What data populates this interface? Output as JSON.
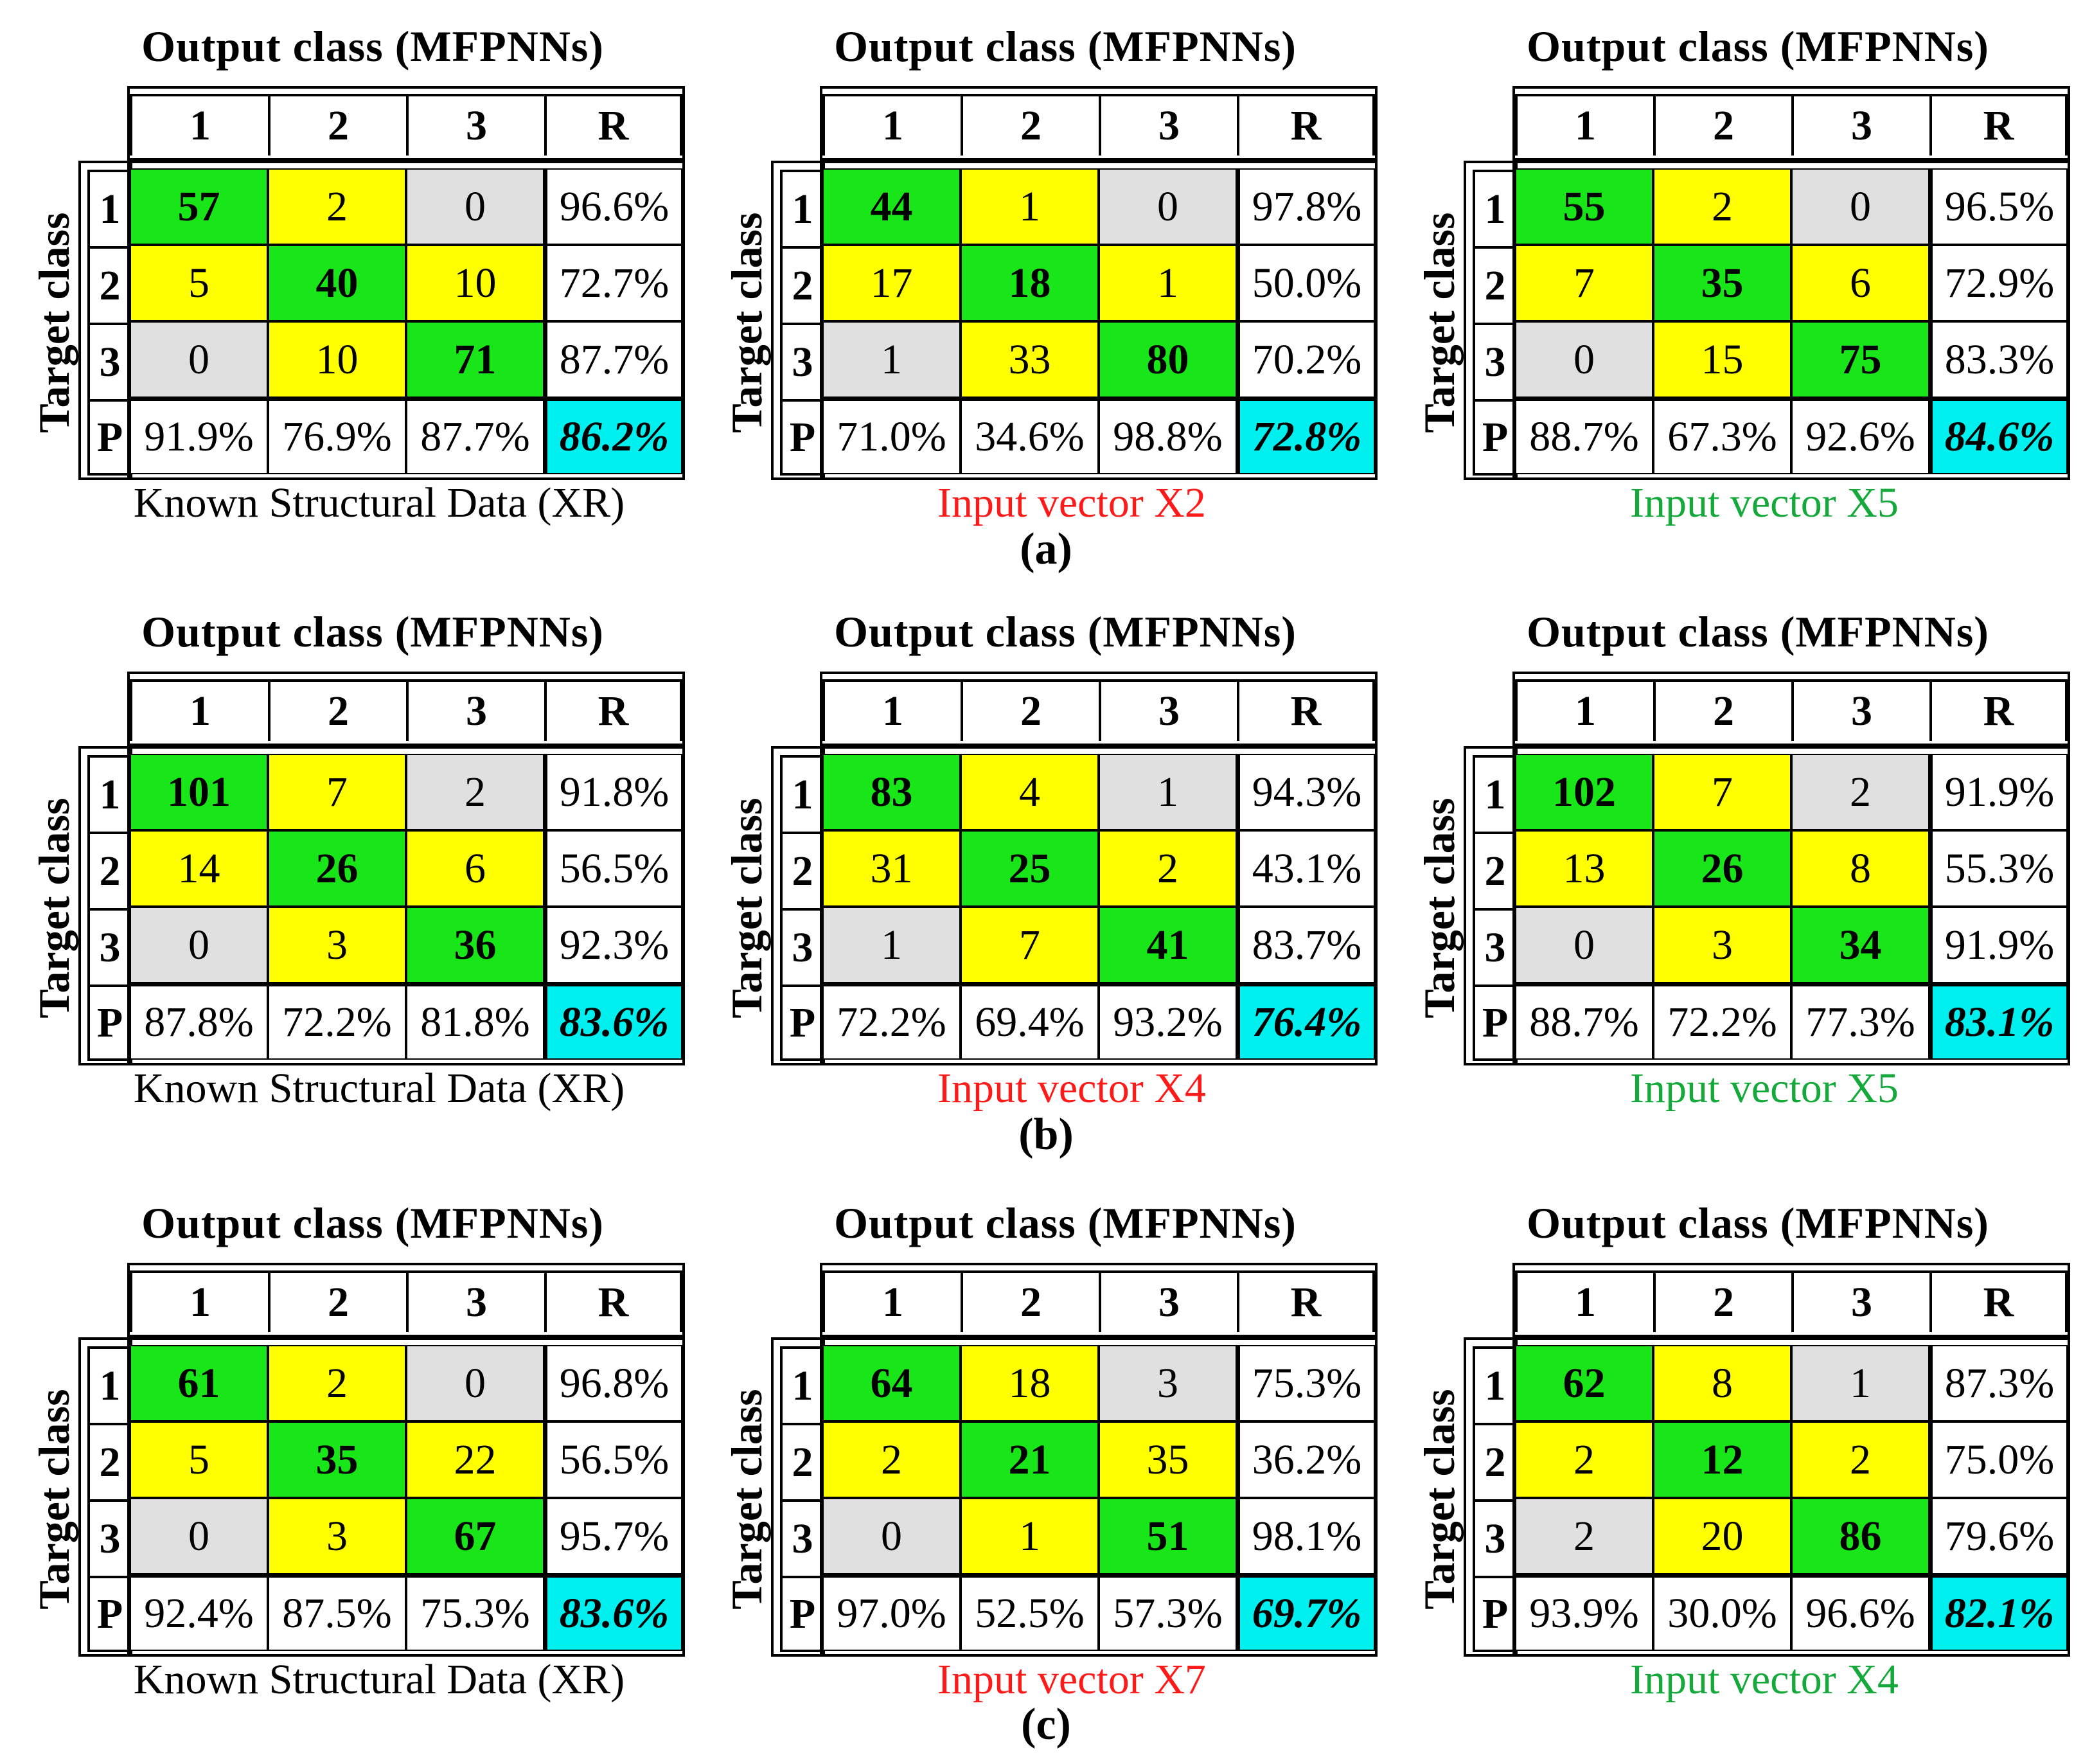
{
  "colors": {
    "correct": "#19e619",
    "adjacent": "#ffff00",
    "far": "#e0e0e0",
    "accuracy": "#00f0f0",
    "caption_black": "#000000",
    "caption_red": "#ff1a1a",
    "caption_green": "#15a83a"
  },
  "chart_data": [
    {
      "type": "table",
      "panel": "(a)",
      "title": "Output class (MFPNNs)",
      "ylabel": "Target class",
      "xlabel": "Known Structural Data (XR)",
      "caption_color": "caption_black",
      "col_labels": [
        "1",
        "2",
        "3",
        "R"
      ],
      "row_labels": [
        "1",
        "2",
        "3",
        "P"
      ],
      "matrix": [
        [
          57,
          2,
          0
        ],
        [
          5,
          40,
          10
        ],
        [
          0,
          10,
          71
        ]
      ],
      "recall": [
        "96.6%",
        "72.7%",
        "87.7%"
      ],
      "precision": [
        "91.9%",
        "76.9%",
        "87.7%"
      ],
      "accuracy": "86.2%"
    },
    {
      "type": "table",
      "panel": "(a)",
      "title": "Output class (MFPNNs)",
      "ylabel": "Target class",
      "xlabel": "Input vector X2",
      "caption_color": "caption_red",
      "col_labels": [
        "1",
        "2",
        "3",
        "R"
      ],
      "row_labels": [
        "1",
        "2",
        "3",
        "P"
      ],
      "matrix": [
        [
          44,
          1,
          0
        ],
        [
          17,
          18,
          1
        ],
        [
          1,
          33,
          80
        ]
      ],
      "recall": [
        "97.8%",
        "50.0%",
        "70.2%"
      ],
      "precision": [
        "71.0%",
        "34.6%",
        "98.8%"
      ],
      "accuracy": "72.8%"
    },
    {
      "type": "table",
      "panel": "(a)",
      "title": "Output class (MFPNNs)",
      "ylabel": "Target class",
      "xlabel": "Input vector X5",
      "caption_color": "caption_green",
      "col_labels": [
        "1",
        "2",
        "3",
        "R"
      ],
      "row_labels": [
        "1",
        "2",
        "3",
        "P"
      ],
      "matrix": [
        [
          55,
          2,
          0
        ],
        [
          7,
          35,
          6
        ],
        [
          0,
          15,
          75
        ]
      ],
      "recall": [
        "96.5%",
        "72.9%",
        "83.3%"
      ],
      "precision": [
        "88.7%",
        "67.3%",
        "92.6%"
      ],
      "accuracy": "84.6%"
    },
    {
      "type": "table",
      "panel": "(b)",
      "title": "Output class (MFPNNs)",
      "ylabel": "Target class",
      "xlabel": "Known Structural Data (XR)",
      "caption_color": "caption_black",
      "col_labels": [
        "1",
        "2",
        "3",
        "R"
      ],
      "row_labels": [
        "1",
        "2",
        "3",
        "P"
      ],
      "matrix": [
        [
          101,
          7,
          2
        ],
        [
          14,
          26,
          6
        ],
        [
          0,
          3,
          36
        ]
      ],
      "recall": [
        "91.8%",
        "56.5%",
        "92.3%"
      ],
      "precision": [
        "87.8%",
        "72.2%",
        "81.8%"
      ],
      "accuracy": "83.6%"
    },
    {
      "type": "table",
      "panel": "(b)",
      "title": "Output class (MFPNNs)",
      "ylabel": "Target class",
      "xlabel": "Input vector X4",
      "caption_color": "caption_red",
      "col_labels": [
        "1",
        "2",
        "3",
        "R"
      ],
      "row_labels": [
        "1",
        "2",
        "3",
        "P"
      ],
      "matrix": [
        [
          83,
          4,
          1
        ],
        [
          31,
          25,
          2
        ],
        [
          1,
          7,
          41
        ]
      ],
      "recall": [
        "94.3%",
        "43.1%",
        "83.7%"
      ],
      "precision": [
        "72.2%",
        "69.4%",
        "93.2%"
      ],
      "accuracy": "76.4%"
    },
    {
      "type": "table",
      "panel": "(b)",
      "title": "Output class (MFPNNs)",
      "ylabel": "Target class",
      "xlabel": "Input vector X5",
      "caption_color": "caption_green",
      "col_labels": [
        "1",
        "2",
        "3",
        "R"
      ],
      "row_labels": [
        "1",
        "2",
        "3",
        "P"
      ],
      "matrix": [
        [
          102,
          7,
          2
        ],
        [
          13,
          26,
          8
        ],
        [
          0,
          3,
          34
        ]
      ],
      "recall": [
        "91.9%",
        "55.3%",
        "91.9%"
      ],
      "precision": [
        "88.7%",
        "72.2%",
        "77.3%"
      ],
      "accuracy": "83.1%"
    },
    {
      "type": "table",
      "panel": "(c)",
      "title": "Output class (MFPNNs)",
      "ylabel": "Target class",
      "xlabel": "Known Structural Data (XR)",
      "caption_color": "caption_black",
      "col_labels": [
        "1",
        "2",
        "3",
        "R"
      ],
      "row_labels": [
        "1",
        "2",
        "3",
        "P"
      ],
      "matrix": [
        [
          61,
          2,
          0
        ],
        [
          5,
          35,
          22
        ],
        [
          0,
          3,
          67
        ]
      ],
      "recall": [
        "96.8%",
        "56.5%",
        "95.7%"
      ],
      "precision": [
        "92.4%",
        "87.5%",
        "75.3%"
      ],
      "accuracy": "83.6%"
    },
    {
      "type": "table",
      "panel": "(c)",
      "title": "Output class (MFPNNs)",
      "ylabel": "Target class",
      "xlabel": "Input vector X7",
      "caption_color": "caption_red",
      "col_labels": [
        "1",
        "2",
        "3",
        "R"
      ],
      "row_labels": [
        "1",
        "2",
        "3",
        "P"
      ],
      "matrix": [
        [
          64,
          18,
          3
        ],
        [
          2,
          21,
          35
        ],
        [
          0,
          1,
          51
        ]
      ],
      "recall": [
        "75.3%",
        "36.2%",
        "98.1%"
      ],
      "precision": [
        "97.0%",
        "52.5%",
        "57.3%"
      ],
      "accuracy": "69.7%"
    },
    {
      "type": "table",
      "panel": "(c)",
      "title": "Output class (MFPNNs)",
      "ylabel": "Target class",
      "xlabel": "Input vector X4",
      "caption_color": "caption_green",
      "col_labels": [
        "1",
        "2",
        "3",
        "R"
      ],
      "row_labels": [
        "1",
        "2",
        "3",
        "P"
      ],
      "matrix": [
        [
          62,
          8,
          1
        ],
        [
          2,
          12,
          2
        ],
        [
          2,
          20,
          86
        ]
      ],
      "recall": [
        "87.3%",
        "75.0%",
        "79.6%"
      ],
      "precision": [
        "93.9%",
        "30.0%",
        "96.6%"
      ],
      "accuracy": "82.1%"
    }
  ],
  "panel_labels": [
    "(a)",
    "(b)",
    "(c)"
  ]
}
